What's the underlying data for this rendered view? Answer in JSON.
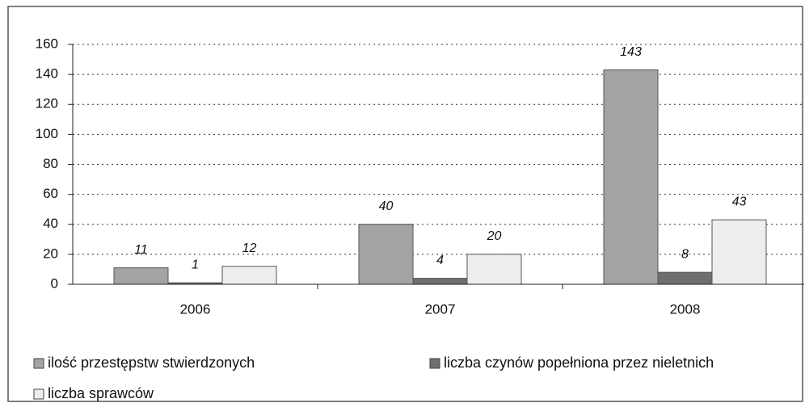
{
  "chart_data": {
    "type": "bar",
    "categories": [
      "2006",
      "2007",
      "2008"
    ],
    "series": [
      {
        "name": "ilość przestępstw stwierdzonych",
        "color": "#a3a3a3",
        "values": [
          11,
          40,
          143
        ]
      },
      {
        "name": "liczba czynów popełniona przez nieletnich",
        "color": "#6e6e6e",
        "values": [
          1,
          4,
          8
        ]
      },
      {
        "name": "liczba sprawców",
        "color": "#ededed",
        "values": [
          12,
          20,
          43
        ]
      }
    ],
    "ylim": [
      0,
      160
    ],
    "yticks": [
      0,
      20,
      40,
      60,
      80,
      100,
      120,
      140,
      160
    ],
    "grid": true,
    "legend": "bottom"
  }
}
